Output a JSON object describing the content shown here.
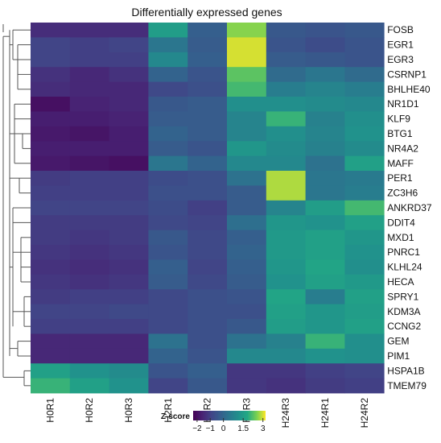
{
  "chart_data": {
    "type": "heatmap",
    "title": "Differentially expressed genes",
    "columns": [
      "H0R1",
      "H0R2",
      "H0R3",
      "H2R1",
      "H2R2",
      "H2R3",
      "H24R3",
      "H24R1",
      "H24R2"
    ],
    "rows": [
      "FOSB",
      "EGR1",
      "EGR3",
      "CSRNP1",
      "BHLHE40",
      "NR1D1",
      "KLF9",
      "BTG1",
      "NR4A2",
      "MAFF",
      "PER1",
      "ZC3H6",
      "ANKRD37",
      "DDIT4",
      "MXD1",
      "PNRC1",
      "KLHL24",
      "HECA",
      "SPRY1",
      "KDM3A",
      "CCNG2",
      "GEM",
      "PIM1",
      "HSPA1B",
      "TMEM79"
    ],
    "values": [
      [
        -1.4,
        -1.4,
        -1.4,
        1.5,
        -0.2,
        2.6,
        -0.4,
        -0.5,
        -0.4
      ],
      [
        -0.9,
        -1.0,
        -0.9,
        0.4,
        -0.3,
        3.0,
        -0.5,
        -0.7,
        -0.5
      ],
      [
        -0.9,
        -1.0,
        -1.0,
        0.9,
        -0.2,
        3.0,
        -0.3,
        -0.4,
        -0.5
      ],
      [
        -1.3,
        -1.5,
        -1.3,
        -0.1,
        -0.5,
        2.3,
        0.1,
        0.4,
        0.1
      ],
      [
        -1.4,
        -1.5,
        -1.5,
        -0.8,
        -0.6,
        2.1,
        0.6,
        0.8,
        0.6
      ],
      [
        -2.0,
        -1.6,
        -1.5,
        -0.4,
        -0.3,
        1.1,
        1.1,
        1.0,
        0.9
      ],
      [
        -1.7,
        -1.7,
        -1.6,
        -0.3,
        -0.3,
        0.8,
        2.0,
        0.7,
        1.1
      ],
      [
        -1.8,
        -1.9,
        -1.7,
        -0.1,
        -0.3,
        0.8,
        1.1,
        0.8,
        1.2
      ],
      [
        -1.7,
        -1.7,
        -1.7,
        -0.3,
        -0.5,
        1.3,
        1.0,
        0.7,
        1.0
      ],
      [
        -1.8,
        -1.9,
        -2.0,
        0.4,
        -0.1,
        0.9,
        0.9,
        0.3,
        1.6
      ],
      [
        -1.1,
        -1.0,
        -1.0,
        -0.7,
        -0.6,
        0.3,
        2.8,
        0.4,
        0.5
      ],
      [
        -1.0,
        -1.0,
        -1.0,
        -0.6,
        -0.6,
        -0.3,
        2.8,
        0.4,
        0.6
      ],
      [
        -0.9,
        -0.9,
        -0.9,
        -0.7,
        -1.0,
        -0.3,
        0.8,
        1.5,
        2.1
      ],
      [
        -1.1,
        -1.1,
        -1.1,
        -0.8,
        -0.9,
        0.2,
        1.3,
        1.2,
        1.6
      ],
      [
        -1.1,
        -1.2,
        -1.1,
        -0.4,
        -0.8,
        -0.2,
        1.4,
        1.6,
        1.3
      ],
      [
        -1.2,
        -1.3,
        -1.2,
        -0.5,
        -0.8,
        -0.1,
        1.4,
        1.6,
        1.2
      ],
      [
        -1.3,
        -1.4,
        -1.3,
        -0.2,
        -0.9,
        -0.2,
        1.3,
        1.7,
        1.1
      ],
      [
        -1.2,
        -1.3,
        -1.2,
        -0.3,
        -0.8,
        -0.3,
        1.2,
        1.6,
        1.4
      ],
      [
        -1.1,
        -1.0,
        -1.0,
        -0.8,
        -0.6,
        -0.5,
        1.7,
        0.6,
        1.6
      ],
      [
        -0.9,
        -0.9,
        -0.8,
        -0.8,
        -0.6,
        -0.6,
        1.6,
        1.3,
        1.5
      ],
      [
        -1.0,
        -1.0,
        -1.0,
        -0.8,
        -0.6,
        -0.4,
        1.5,
        1.3,
        1.6
      ],
      [
        -1.5,
        -1.5,
        -1.5,
        0.3,
        -0.6,
        0.3,
        0.7,
        2.0,
        1.1
      ],
      [
        -1.5,
        -1.5,
        -1.5,
        -0.1,
        -0.5,
        0.9,
        0.9,
        1.2,
        1.1
      ],
      [
        1.6,
        1.2,
        1.0,
        -0.5,
        -0.2,
        -1.2,
        -1.2,
        -1.0,
        -0.9
      ],
      [
        2.0,
        1.6,
        1.2,
        -0.9,
        -0.4,
        -1.2,
        -1.3,
        -1.1,
        -1.0
      ]
    ],
    "colorbar": {
      "title": "Z-score",
      "ticks": [
        "−2",
        "−1",
        "0",
        "1.5",
        "3"
      ],
      "tick_values": [
        -2,
        -1,
        0,
        1.5,
        3
      ],
      "range": [
        -2.3,
        3.2
      ],
      "colormap": "viridis"
    },
    "row_dendrogram": true
  }
}
